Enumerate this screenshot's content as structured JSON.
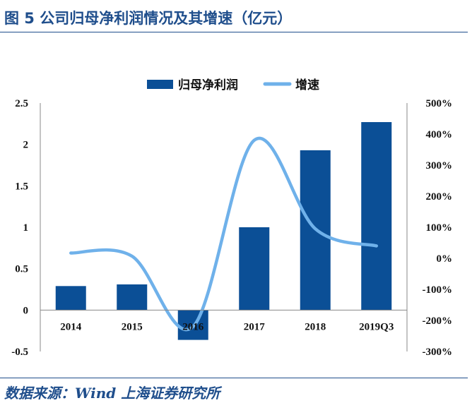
{
  "header": {
    "title": "图 5 公司归母净利润情况及其增速（亿元）"
  },
  "footer": {
    "source": "数据来源：Wind  上海证券研究所"
  },
  "colors": {
    "bar": "#0b4f96",
    "line": "#6fb1ea",
    "brand": "#1f4e8c"
  },
  "chart_data": {
    "type": "bar",
    "title": "",
    "categories": [
      "2014",
      "2015",
      "2016",
      "2017",
      "2018",
      "2019Q3"
    ],
    "series": [
      {
        "name": "归母净利润",
        "type": "bar",
        "axis": "left",
        "values": [
          0.29,
          0.31,
          -0.36,
          1.0,
          1.93,
          2.27
        ]
      },
      {
        "name": "增速",
        "type": "line",
        "axis": "right",
        "values": [
          17,
          7,
          -220,
          380,
          95,
          40
        ]
      }
    ],
    "left_axis": {
      "min": -0.5,
      "max": 2.5,
      "ticks": [
        "2.5",
        "2",
        "1.5",
        "1",
        "0.5",
        "0",
        "-0.5"
      ],
      "tick_values": [
        2.5,
        2,
        1.5,
        1,
        0.5,
        0,
        -0.5
      ]
    },
    "right_axis": {
      "min": -300,
      "max": 500,
      "ticks": [
        "500%",
        "400%",
        "300%",
        "200%",
        "100%",
        "0%",
        "-100%",
        "-200%",
        "-300%"
      ],
      "tick_values": [
        500,
        400,
        300,
        200,
        100,
        0,
        -100,
        -200,
        -300
      ]
    },
    "legend": {
      "position": "top-center",
      "items": [
        "归母净利润",
        "增速"
      ]
    },
    "grid": false
  }
}
